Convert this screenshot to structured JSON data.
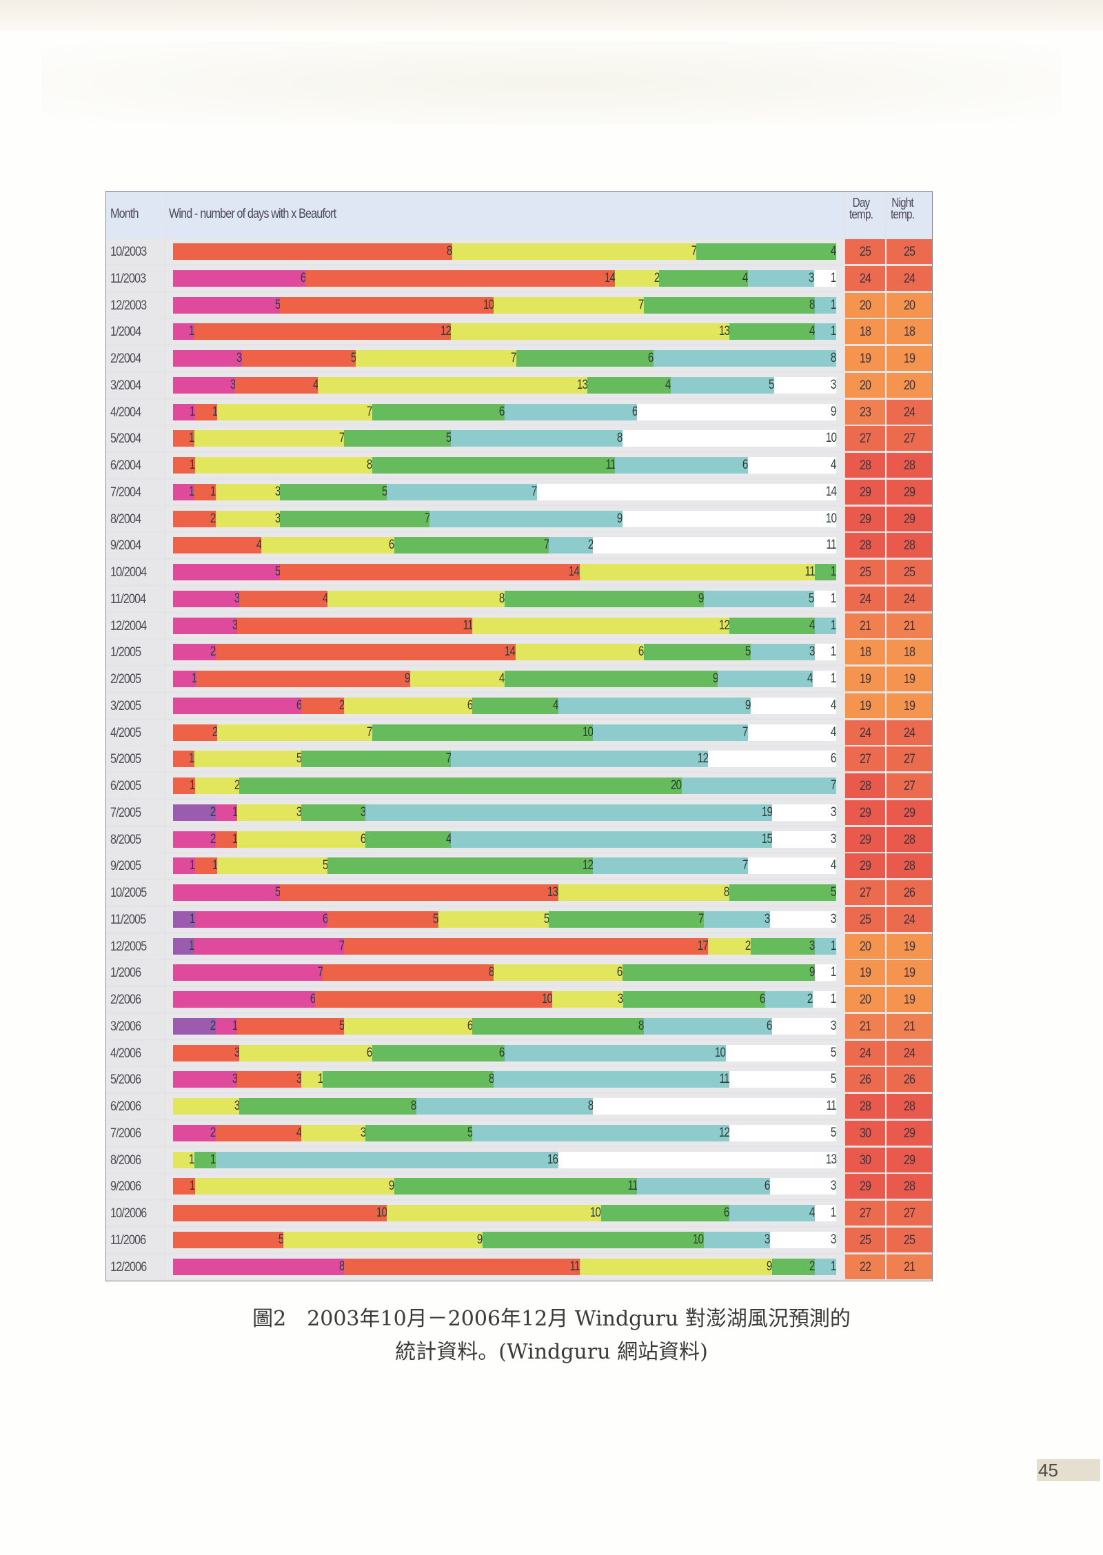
{
  "chart_data": {
    "type": "bar",
    "orientation": "horizontal-stacked-100",
    "title": "Wind - number of days with x Beaufort",
    "column_headers": {
      "month": "Month",
      "wind": "Wind - number of days with x Beaufort",
      "day_temp": "Day temp.",
      "night_temp": "Night temp."
    },
    "segment_order": [
      "purple",
      "magenta",
      "red",
      "yellow",
      "green",
      "teal",
      "white"
    ],
    "segment_colors": {
      "purple": "#9b5cb0",
      "magenta": "#e04a9c",
      "red": "#ee6248",
      "yellow": "#e2e65c",
      "green": "#66bc5c",
      "teal": "#8ecbcc",
      "white": "#ffffff"
    },
    "rows": [
      {
        "month": "10/2003",
        "segments": [
          0,
          0,
          8,
          7,
          4,
          0,
          0
        ],
        "day_temp": 25,
        "night_temp": 25
      },
      {
        "month": "11/2003",
        "segments": [
          0,
          6,
          14,
          2,
          4,
          3,
          1
        ],
        "day_temp": 24,
        "night_temp": 24
      },
      {
        "month": "12/2003",
        "segments": [
          0,
          5,
          10,
          7,
          8,
          1,
          0
        ],
        "day_temp": 20,
        "night_temp": 20
      },
      {
        "month": "1/2004",
        "segments": [
          0,
          1,
          12,
          13,
          4,
          1,
          0
        ],
        "day_temp": 18,
        "night_temp": 18
      },
      {
        "month": "2/2004",
        "segments": [
          0,
          3,
          5,
          7,
          6,
          8,
          0
        ],
        "day_temp": 19,
        "night_temp": 19
      },
      {
        "month": "3/2004",
        "segments": [
          0,
          3,
          4,
          13,
          4,
          5,
          3
        ],
        "day_temp": 20,
        "night_temp": 20
      },
      {
        "month": "4/2004",
        "segments": [
          0,
          1,
          1,
          7,
          6,
          6,
          9
        ],
        "day_temp": 23,
        "night_temp": 24
      },
      {
        "month": "5/2004",
        "segments": [
          0,
          0,
          1,
          7,
          5,
          8,
          10
        ],
        "day_temp": 27,
        "night_temp": 27
      },
      {
        "month": "6/2004",
        "segments": [
          0,
          0,
          1,
          8,
          11,
          6,
          4
        ],
        "day_temp": 28,
        "night_temp": 28
      },
      {
        "month": "7/2004",
        "segments": [
          0,
          1,
          1,
          3,
          5,
          7,
          14
        ],
        "day_temp": 29,
        "night_temp": 29
      },
      {
        "month": "8/2004",
        "segments": [
          0,
          0,
          2,
          3,
          7,
          9,
          10
        ],
        "day_temp": 29,
        "night_temp": 29
      },
      {
        "month": "9/2004",
        "segments": [
          0,
          0,
          4,
          6,
          7,
          2,
          11
        ],
        "day_temp": 28,
        "night_temp": 28
      },
      {
        "month": "10/2004",
        "segments": [
          0,
          5,
          14,
          11,
          1,
          0,
          0
        ],
        "day_temp": 25,
        "night_temp": 25
      },
      {
        "month": "11/2004",
        "segments": [
          0,
          3,
          4,
          8,
          9,
          5,
          1
        ],
        "day_temp": 24,
        "night_temp": 24
      },
      {
        "month": "12/2004",
        "segments": [
          0,
          3,
          11,
          12,
          4,
          1,
          0
        ],
        "day_temp": 21,
        "night_temp": 21
      },
      {
        "month": "1/2005",
        "segments": [
          0,
          2,
          14,
          6,
          5,
          3,
          1
        ],
        "day_temp": 18,
        "night_temp": 18
      },
      {
        "month": "2/2005",
        "segments": [
          0,
          1,
          9,
          4,
          9,
          4,
          1
        ],
        "day_temp": 19,
        "night_temp": 19
      },
      {
        "month": "3/2005",
        "segments": [
          0,
          6,
          2,
          6,
          4,
          9,
          4
        ],
        "day_temp": 19,
        "night_temp": 19
      },
      {
        "month": "4/2005",
        "segments": [
          0,
          0,
          2,
          7,
          10,
          7,
          4
        ],
        "day_temp": 24,
        "night_temp": 24
      },
      {
        "month": "5/2005",
        "segments": [
          0,
          0,
          1,
          5,
          7,
          12,
          6
        ],
        "day_temp": 27,
        "night_temp": 27
      },
      {
        "month": "6/2005",
        "segments": [
          0,
          0,
          1,
          2,
          20,
          7,
          0
        ],
        "day_temp": 28,
        "night_temp": 27
      },
      {
        "month": "7/2005",
        "segments": [
          2,
          1,
          0,
          3,
          3,
          19,
          3
        ],
        "day_temp": 29,
        "night_temp": 29
      },
      {
        "month": "8/2005",
        "segments": [
          0,
          2,
          1,
          6,
          4,
          15,
          3
        ],
        "day_temp": 29,
        "night_temp": 28
      },
      {
        "month": "9/2005",
        "segments": [
          0,
          1,
          1,
          5,
          12,
          7,
          4
        ],
        "day_temp": 29,
        "night_temp": 28
      },
      {
        "month": "10/2005",
        "segments": [
          0,
          5,
          13,
          8,
          5,
          0,
          0
        ],
        "day_temp": 27,
        "night_temp": 26
      },
      {
        "month": "11/2005",
        "segments": [
          1,
          6,
          5,
          5,
          7,
          3,
          3
        ],
        "day_temp": 25,
        "night_temp": 24
      },
      {
        "month": "12/2005",
        "segments": [
          1,
          7,
          17,
          2,
          3,
          1,
          0
        ],
        "day_temp": 20,
        "night_temp": 19
      },
      {
        "month": "1/2006",
        "segments": [
          0,
          7,
          8,
          6,
          9,
          0,
          1
        ],
        "day_temp": 19,
        "night_temp": 19
      },
      {
        "month": "2/2006",
        "segments": [
          0,
          6,
          10,
          3,
          6,
          2,
          1
        ],
        "day_temp": 20,
        "night_temp": 19
      },
      {
        "month": "3/2006",
        "segments": [
          2,
          1,
          5,
          6,
          8,
          6,
          3
        ],
        "day_temp": 21,
        "night_temp": 21
      },
      {
        "month": "4/2006",
        "segments": [
          0,
          0,
          3,
          6,
          6,
          10,
          5
        ],
        "day_temp": 24,
        "night_temp": 24
      },
      {
        "month": "5/2006",
        "segments": [
          0,
          3,
          3,
          1,
          8,
          11,
          5
        ],
        "day_temp": 26,
        "night_temp": 26
      },
      {
        "month": "6/2006",
        "segments": [
          0,
          0,
          0,
          3,
          8,
          8,
          11
        ],
        "day_temp": 28,
        "night_temp": 28
      },
      {
        "month": "7/2006",
        "segments": [
          0,
          2,
          4,
          3,
          5,
          12,
          5
        ],
        "day_temp": 30,
        "night_temp": 29
      },
      {
        "month": "8/2006",
        "segments": [
          0,
          0,
          0,
          1,
          1,
          16,
          13
        ],
        "day_temp": 30,
        "night_temp": 29
      },
      {
        "month": "9/2006",
        "segments": [
          0,
          0,
          1,
          9,
          11,
          6,
          3
        ],
        "day_temp": 29,
        "night_temp": 28
      },
      {
        "month": "10/2006",
        "segments": [
          0,
          0,
          10,
          10,
          6,
          4,
          1
        ],
        "day_temp": 27,
        "night_temp": 27
      },
      {
        "month": "11/2006",
        "segments": [
          0,
          0,
          5,
          9,
          10,
          3,
          3
        ],
        "day_temp": 25,
        "night_temp": 25
      },
      {
        "month": "12/2006",
        "segments": [
          0,
          8,
          11,
          9,
          2,
          1,
          0
        ],
        "day_temp": 22,
        "night_temp": 21
      }
    ],
    "temp_colors": {
      "cool": "#f4944e",
      "mild": "#f08050",
      "warm": "#ec6a4e",
      "hot": "#ea5a4c"
    }
  },
  "caption": {
    "line1": "圖2　2003年10月－2006年12月 Windguru 對澎湖風況預測的",
    "line2": "統計資料。(Windguru  網站資料)"
  },
  "page_number": "45"
}
